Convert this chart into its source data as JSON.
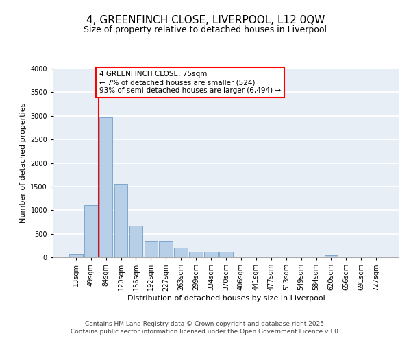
{
  "title": "4, GREENFINCH CLOSE, LIVERPOOL, L12 0QW",
  "subtitle": "Size of property relative to detached houses in Liverpool",
  "xlabel": "Distribution of detached houses by size in Liverpool",
  "ylabel": "Number of detached properties",
  "categories": [
    "13sqm",
    "49sqm",
    "84sqm",
    "120sqm",
    "156sqm",
    "192sqm",
    "227sqm",
    "263sqm",
    "299sqm",
    "334sqm",
    "370sqm",
    "406sqm",
    "441sqm",
    "477sqm",
    "513sqm",
    "549sqm",
    "584sqm",
    "620sqm",
    "656sqm",
    "691sqm",
    "727sqm"
  ],
  "values": [
    75,
    1100,
    2960,
    1550,
    670,
    330,
    330,
    200,
    115,
    115,
    120,
    0,
    0,
    0,
    0,
    0,
    0,
    40,
    0,
    0,
    0
  ],
  "bar_color": "#b8cfe8",
  "bar_edge_color": "#6090c0",
  "vline_color": "red",
  "annotation_text": "4 GREENFINCH CLOSE: 75sqm\n← 7% of detached houses are smaller (524)\n93% of semi-detached houses are larger (6,494) →",
  "annotation_box_color": "red",
  "annotation_bg": "white",
  "ylim": [
    0,
    4000
  ],
  "yticks": [
    0,
    500,
    1000,
    1500,
    2000,
    2500,
    3000,
    3500,
    4000
  ],
  "bg_color": "#e8eef5",
  "grid_color": "white",
  "footer_line1": "Contains HM Land Registry data © Crown copyright and database right 2025.",
  "footer_line2": "Contains public sector information licensed under the Open Government Licence v3.0.",
  "title_fontsize": 11,
  "subtitle_fontsize": 9,
  "xlabel_fontsize": 8,
  "ylabel_fontsize": 8,
  "tick_fontsize": 7,
  "footer_fontsize": 6.5
}
